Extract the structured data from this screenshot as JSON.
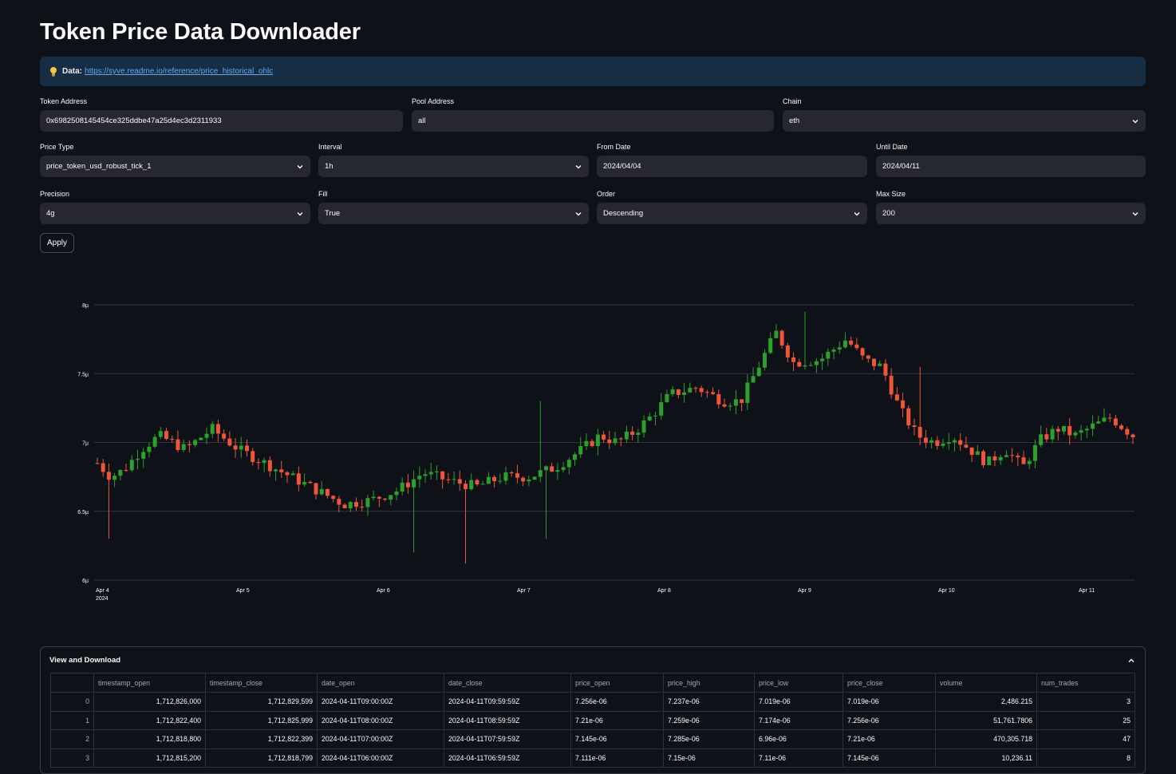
{
  "page": {
    "title": "Token Price Data Downloader"
  },
  "info": {
    "label": "Data:",
    "link": "https://syve.readme.io/reference/price_historical_ohlc"
  },
  "form": {
    "token_address": {
      "label": "Token Address",
      "value": "0x6982508145454ce325ddbe47a25d4ec3d2311933"
    },
    "pool_address": {
      "label": "Pool Address",
      "value": "all"
    },
    "chain": {
      "label": "Chain",
      "value": "eth"
    },
    "price_type": {
      "label": "Price Type",
      "value": "price_token_usd_robust_tick_1"
    },
    "interval": {
      "label": "Interval",
      "value": "1h"
    },
    "from_date": {
      "label": "From Date",
      "value": "2024/04/04"
    },
    "until_date": {
      "label": "Until Date",
      "value": "2024/04/11"
    },
    "precision": {
      "label": "Precision",
      "value": "4g"
    },
    "fill": {
      "label": "Fill",
      "value": "True"
    },
    "order": {
      "label": "Order",
      "value": "Descending"
    },
    "max_size": {
      "label": "Max Size",
      "value": "200"
    },
    "apply_label": "Apply"
  },
  "chart_data": {
    "type": "candlestick",
    "ylim": [
      6.0,
      8.0
    ],
    "y_ticks": [
      "6µ",
      "6.5µ",
      "7µ",
      "7.5µ",
      "8µ"
    ],
    "x_ticks": [
      "Apr 4",
      "Apr 5",
      "Apr 6",
      "Apr 7",
      "Apr 8",
      "Apr 9",
      "Apr 10",
      "Apr 11"
    ],
    "x_year": "2024",
    "up_color": "#2ca02c",
    "down_color": "#ef553b",
    "grid": true,
    "anchors": [
      [
        0,
        6.85
      ],
      [
        3,
        6.75
      ],
      [
        6,
        6.8
      ],
      [
        10,
        6.95
      ],
      [
        14,
        7.05
      ],
      [
        20,
        6.95
      ],
      [
        26,
        7.1
      ],
      [
        32,
        6.95
      ],
      [
        38,
        6.85
      ],
      [
        44,
        6.75
      ],
      [
        50,
        6.65
      ],
      [
        56,
        6.55
      ],
      [
        62,
        6.58
      ],
      [
        68,
        6.65
      ],
      [
        74,
        6.78
      ],
      [
        80,
        6.72
      ],
      [
        86,
        6.68
      ],
      [
        92,
        6.75
      ],
      [
        98,
        6.75
      ],
      [
        104,
        6.82
      ],
      [
        110,
        6.95
      ],
      [
        114,
        7.05
      ],
      [
        118,
        7.0
      ],
      [
        122,
        7.08
      ],
      [
        126,
        7.2
      ],
      [
        130,
        7.35
      ],
      [
        136,
        7.4
      ],
      [
        142,
        7.3
      ],
      [
        146,
        7.3
      ],
      [
        150,
        7.55
      ],
      [
        154,
        7.8
      ],
      [
        158,
        7.58
      ],
      [
        164,
        7.6
      ],
      [
        170,
        7.75
      ],
      [
        174,
        7.6
      ],
      [
        178,
        7.55
      ],
      [
        182,
        7.25
      ],
      [
        186,
        7.05
      ],
      [
        190,
        7.0
      ],
      [
        194,
        7.05
      ],
      [
        198,
        6.95
      ],
      [
        202,
        6.85
      ],
      [
        206,
        6.95
      ],
      [
        210,
        6.82
      ],
      [
        214,
        7.02
      ],
      [
        218,
        7.1
      ],
      [
        222,
        7.05
      ],
      [
        226,
        7.12
      ],
      [
        230,
        7.18
      ],
      [
        235,
        7.05
      ]
    ],
    "candle_count": 181,
    "spikes": [
      [
        3,
        6.3,
        "low"
      ],
      [
        84,
        6.12,
        "low"
      ],
      [
        72,
        6.2,
        "low"
      ],
      [
        102,
        6.3,
        "low"
      ],
      [
        101,
        7.3,
        "high"
      ],
      [
        160,
        7.95,
        "high"
      ],
      [
        187,
        7.55,
        "high"
      ]
    ]
  },
  "table": {
    "title": "View and Download",
    "columns": [
      "",
      "timestamp_open",
      "timestamp_close",
      "date_open",
      "date_close",
      "price_open",
      "price_high",
      "price_low",
      "price_close",
      "volume",
      "num_trades"
    ],
    "rows": [
      [
        "0",
        "1,712,826,000",
        "1,712,829,599",
        "2024-04-11T09:00:00Z",
        "2024-04-11T09:59:59Z",
        "7.256e-06",
        "7.237e-06",
        "7.019e-06",
        "7.019e-06",
        "2,486.215",
        "3"
      ],
      [
        "1",
        "1,712,822,400",
        "1,712,825,999",
        "2024-04-11T08:00:00Z",
        "2024-04-11T08:59:59Z",
        "7.21e-06",
        "7.259e-06",
        "7.174e-06",
        "7.256e-06",
        "51,761.7806",
        "25"
      ],
      [
        "2",
        "1,712,818,800",
        "1,712,822,399",
        "2024-04-11T07:00:00Z",
        "2024-04-11T07:59:59Z",
        "7.145e-06",
        "7.285e-06",
        "6.96e-06",
        "7.21e-06",
        "470,305.718",
        "47"
      ],
      [
        "3",
        "1,712,815,200",
        "1,712,818,799",
        "2024-04-11T06:00:00Z",
        "2024-04-11T06:59:59Z",
        "7.111e-06",
        "7.15e-06",
        "7.11e-06",
        "7.145e-06",
        "10,236.11",
        "8"
      ]
    ]
  }
}
